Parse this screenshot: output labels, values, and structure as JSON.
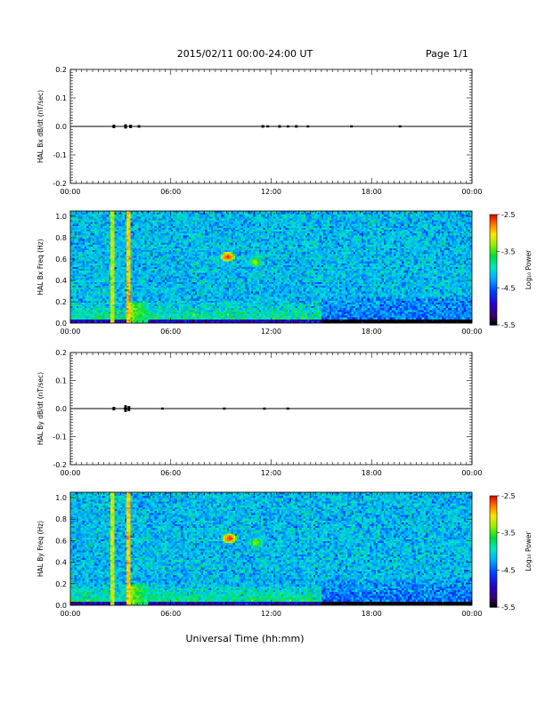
{
  "header": {
    "title": "2015/02/11   00:00-24:00 UT",
    "page": "Page 1/1"
  },
  "footer": {
    "xlabel": "Universal Time (hh:mm)"
  },
  "colorbar": {
    "label": "Log₁₀ Power",
    "tick_labels": [
      "-2.5",
      "-3.5",
      "-4.5",
      "-5.5"
    ],
    "range": [
      -5.5,
      -2.5
    ]
  },
  "chart_data": [
    {
      "type": "line",
      "ylabel": "HAL Bx dB/dt (nT/sec)",
      "xlim": [
        0,
        24
      ],
      "ylim": [
        -0.2,
        0.2
      ],
      "x_tick_labels": [
        "00:00",
        "06:00",
        "12:00",
        "18:00",
        "00:00"
      ],
      "y_tick_labels": [
        "0.2",
        "0.1",
        "0.0",
        "-0.1",
        "-0.2"
      ],
      "baseline": 0.0,
      "bursts": [
        {
          "t": 2.6,
          "amp": 0.004
        },
        {
          "t": 3.3,
          "amp": 0.005
        },
        {
          "t": 3.6,
          "amp": 0.004
        },
        {
          "t": 4.1,
          "amp": 0.003
        },
        {
          "t": 11.5,
          "amp": 0.003
        },
        {
          "t": 11.8,
          "amp": 0.002
        },
        {
          "t": 12.5,
          "amp": 0.003
        },
        {
          "t": 13.0,
          "amp": 0.002
        },
        {
          "t": 13.5,
          "amp": 0.003
        },
        {
          "t": 14.2,
          "amp": 0.002
        },
        {
          "t": 16.8,
          "amp": 0.002
        },
        {
          "t": 19.7,
          "amp": 0.002
        }
      ]
    },
    {
      "type": "heatmap",
      "ylabel": "HAL Bx Freq (Hz)",
      "xlim": [
        0,
        24
      ],
      "ylim": [
        0,
        1.0
      ],
      "x_tick_labels": [
        "00:00",
        "06:00",
        "12:00",
        "18:00",
        "00:00"
      ],
      "y_tick_labels": [
        "1.0",
        "0.8",
        "0.6",
        "0.4",
        "0.2",
        "0.0"
      ],
      "zlim": [
        -5.5,
        -2.5
      ],
      "features": [
        {
          "kind": "vertical-line",
          "t": 2.55,
          "value": -3.2
        },
        {
          "kind": "vertical-line",
          "t": 3.45,
          "value": -3.0
        },
        {
          "kind": "spot",
          "t": 9.4,
          "f": 0.62,
          "value": -2.6
        },
        {
          "kind": "spot",
          "t": 11.05,
          "f": 0.57,
          "value": -3.3
        }
      ]
    },
    {
      "type": "line",
      "ylabel": "HAL By dB/dt (nT/sec)",
      "xlim": [
        0,
        24
      ],
      "ylim": [
        -0.2,
        0.2
      ],
      "x_tick_labels": [
        "00:00",
        "06:00",
        "12:00",
        "18:00",
        "00:00"
      ],
      "y_tick_labels": [
        "0.2",
        "0.1",
        "0.0",
        "-0.1",
        "-0.2"
      ],
      "baseline": 0.0,
      "bursts": [
        {
          "t": 2.6,
          "amp": 0.004
        },
        {
          "t": 3.3,
          "amp": 0.008
        },
        {
          "t": 3.5,
          "amp": 0.006
        },
        {
          "t": 5.5,
          "amp": 0.002
        },
        {
          "t": 9.2,
          "amp": 0.002
        },
        {
          "t": 11.6,
          "amp": 0.002
        },
        {
          "t": 13.0,
          "amp": 0.002
        }
      ]
    },
    {
      "type": "heatmap",
      "ylabel": "HAL By Freq (Hz)",
      "xlim": [
        0,
        24
      ],
      "ylim": [
        0,
        1.0
      ],
      "x_tick_labels": [
        "00:00",
        "06:00",
        "12:00",
        "18:00",
        "00:00"
      ],
      "y_tick_labels": [
        "1.0",
        "0.8",
        "0.6",
        "0.4",
        "0.2",
        "0.0"
      ],
      "zlim": [
        -5.5,
        -2.5
      ],
      "features": [
        {
          "kind": "vertical-line",
          "t": 2.55,
          "value": -3.2
        },
        {
          "kind": "vertical-line",
          "t": 3.45,
          "value": -3.0
        },
        {
          "kind": "spot",
          "t": 9.5,
          "f": 0.62,
          "value": -2.6
        },
        {
          "kind": "spot",
          "t": 11.1,
          "f": 0.58,
          "value": -3.3
        }
      ]
    }
  ]
}
